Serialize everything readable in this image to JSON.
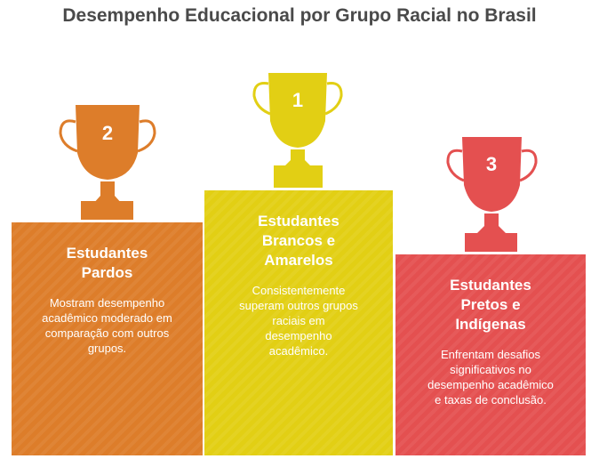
{
  "title": "Desempenho Educacional por Grupo Racial no Brasil",
  "colors": {
    "orange": "#dd7d2a",
    "yellow": "#e2cf14",
    "red": "#e45050",
    "title": "#4a4a4a"
  },
  "podium": [
    {
      "rank": "2",
      "heading": "Estudantes Pardos",
      "text": "Mostram desempenho acadêmico moderado em comparação com outros grupos."
    },
    {
      "rank": "1",
      "heading": "Estudantes Brancos e Amarelos",
      "text": "Consistentemente superam outros grupos raciais em desempenho acadêmico."
    },
    {
      "rank": "3",
      "heading": "Estudantes Pretos e Indígenas",
      "text": "Enfrentam desafios significativos no desempenho acadêmico e taxas de conclusão."
    }
  ]
}
